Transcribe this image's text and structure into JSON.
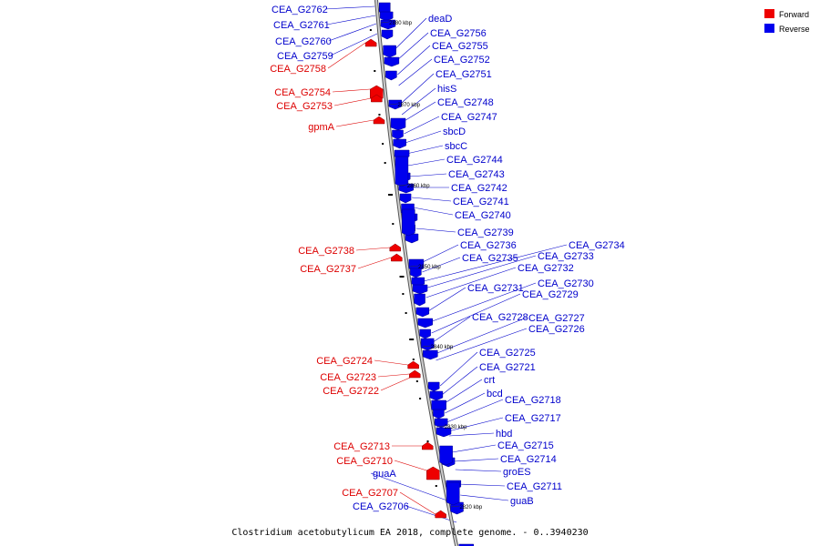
{
  "map": {
    "caption": "Clostridium acetobutylicum EA 2018, complete genome. - 0..3940230",
    "legend": [
      {
        "label": "Forward",
        "color": "#ee0000"
      },
      {
        "label": "Reverse",
        "color": "#0000ee"
      }
    ],
    "ticks": [
      "2880 kbp",
      "2870 kbp",
      "2860 kbp",
      "2850 kbp",
      "2840 kbp",
      "2830 kbp",
      "2820 kbp"
    ],
    "forward_genes": [
      "CEA_G2758",
      "CEA_G2754",
      "CEA_G2753",
      "gpmA",
      "CEA_G2738",
      "CEA_G2737",
      "CEA_G2724",
      "CEA_G2723",
      "CEA_G2722",
      "CEA_G2713",
      "CEA_G2710",
      "CEA_G2707"
    ],
    "reverse_genes": [
      "CEA_G2762",
      "CEA_G2761",
      "CEA_G2760",
      "CEA_G2759",
      "deaD",
      "CEA_G2756",
      "CEA_G2755",
      "CEA_G2752",
      "CEA_G2751",
      "hisS",
      "CEA_G2748",
      "CEA_G2747",
      "sbcD",
      "sbcC",
      "CEA_G2744",
      "CEA_G2743",
      "CEA_G2742",
      "CEA_G2741",
      "CEA_G2740",
      "CEA_G2739",
      "CEA_G2736",
      "CEA_G2735",
      "CEA_G2734",
      "CEA_G2733",
      "CEA_G2732",
      "CEA_G2731",
      "CEA_G2730",
      "CEA_G2729",
      "CEA_G2728",
      "CEA_G2727",
      "CEA_G2726",
      "CEA_G2725",
      "CEA_G2721",
      "crt",
      "bcd",
      "CEA_G2718",
      "CEA_G2717",
      "hbd",
      "CEA_G2715",
      "CEA_G2714",
      "groES",
      "CEA_G2711",
      "guaB",
      "guaA",
      "CEA_G2706"
    ]
  }
}
